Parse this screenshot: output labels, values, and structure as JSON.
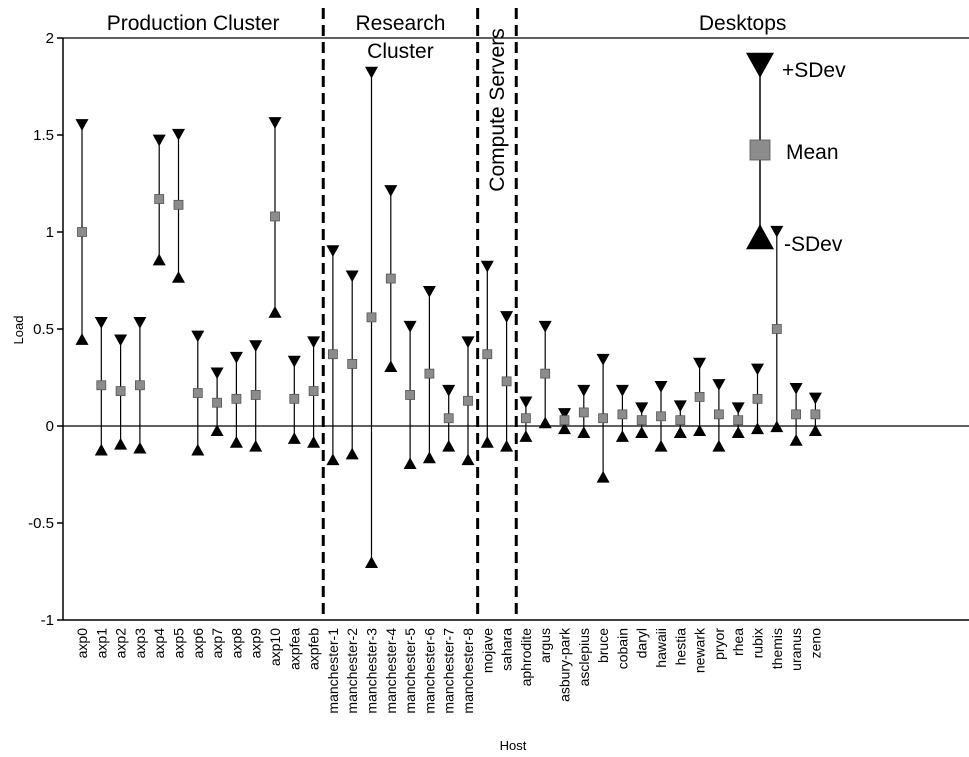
{
  "chart_data": {
    "type": "scatter",
    "subtype": "error-bar",
    "xlabel": "Host",
    "ylabel": "Load",
    "ylim": [
      -1,
      2
    ],
    "yticks": [
      -1,
      -0.5,
      0,
      0.5,
      1,
      1.5,
      2
    ],
    "ytick_labels": [
      "-1",
      "-0.5",
      "0",
      "0.5",
      "1",
      "1.5",
      "2"
    ],
    "grid": false,
    "legend_position": "top-right",
    "legend": {
      "plus_sdev": "+SDev",
      "mean": "Mean",
      "minus_sdev": "-SDev"
    },
    "groups": [
      {
        "label_lines": [
          "Production Cluster"
        ],
        "vertical": false
      },
      {
        "label_lines": [
          "Research",
          "Cluster"
        ],
        "vertical": false
      },
      {
        "label_lines": [
          "Compute Servers"
        ],
        "vertical": true
      },
      {
        "label_lines": [
          "Desktops"
        ],
        "vertical": false
      }
    ],
    "hosts": [
      {
        "name": "axp0",
        "group": 0,
        "mean": 1.0,
        "plus_sdev": 1.55,
        "minus_sdev": 0.45
      },
      {
        "name": "axp1",
        "group": 0,
        "mean": 0.21,
        "plus_sdev": 0.53,
        "minus_sdev": -0.12
      },
      {
        "name": "axp2",
        "group": 0,
        "mean": 0.18,
        "plus_sdev": 0.44,
        "minus_sdev": -0.09
      },
      {
        "name": "axp3",
        "group": 0,
        "mean": 0.21,
        "plus_sdev": 0.53,
        "minus_sdev": -0.11
      },
      {
        "name": "axp4",
        "group": 0,
        "mean": 1.17,
        "plus_sdev": 1.47,
        "minus_sdev": 0.86
      },
      {
        "name": "axp5",
        "group": 0,
        "mean": 1.14,
        "plus_sdev": 1.5,
        "minus_sdev": 0.77
      },
      {
        "name": "axp6",
        "group": 0,
        "mean": 0.17,
        "plus_sdev": 0.46,
        "minus_sdev": -0.12
      },
      {
        "name": "axp7",
        "group": 0,
        "mean": 0.12,
        "plus_sdev": 0.27,
        "minus_sdev": -0.02
      },
      {
        "name": "axp8",
        "group": 0,
        "mean": 0.14,
        "plus_sdev": 0.35,
        "minus_sdev": -0.08
      },
      {
        "name": "axp9",
        "group": 0,
        "mean": 0.16,
        "plus_sdev": 0.41,
        "minus_sdev": -0.1
      },
      {
        "name": "axp10",
        "group": 0,
        "mean": 1.08,
        "plus_sdev": 1.56,
        "minus_sdev": 0.59
      },
      {
        "name": "axpfea",
        "group": 0,
        "mean": 0.14,
        "plus_sdev": 0.33,
        "minus_sdev": -0.06
      },
      {
        "name": "axpfeb",
        "group": 0,
        "mean": 0.18,
        "plus_sdev": 0.43,
        "minus_sdev": -0.08
      },
      {
        "name": "manchester-1",
        "group": 1,
        "mean": 0.37,
        "plus_sdev": 0.9,
        "minus_sdev": -0.17
      },
      {
        "name": "manchester-2",
        "group": 1,
        "mean": 0.32,
        "plus_sdev": 0.77,
        "minus_sdev": -0.14
      },
      {
        "name": "manchester-3",
        "group": 1,
        "mean": 0.56,
        "plus_sdev": 1.82,
        "minus_sdev": -0.7
      },
      {
        "name": "manchester-4",
        "group": 1,
        "mean": 0.76,
        "plus_sdev": 1.21,
        "minus_sdev": 0.31
      },
      {
        "name": "manchester-5",
        "group": 1,
        "mean": 0.16,
        "plus_sdev": 0.51,
        "minus_sdev": -0.19
      },
      {
        "name": "manchester-6",
        "group": 1,
        "mean": 0.27,
        "plus_sdev": 0.69,
        "minus_sdev": -0.16
      },
      {
        "name": "manchester-7",
        "group": 1,
        "mean": 0.04,
        "plus_sdev": 0.18,
        "minus_sdev": -0.1
      },
      {
        "name": "manchester-8",
        "group": 1,
        "mean": 0.13,
        "plus_sdev": 0.43,
        "minus_sdev": -0.17
      },
      {
        "name": "mojave",
        "group": 2,
        "mean": 0.37,
        "plus_sdev": 0.82,
        "minus_sdev": -0.08
      },
      {
        "name": "sahara",
        "group": 2,
        "mean": 0.23,
        "plus_sdev": 0.56,
        "minus_sdev": -0.1
      },
      {
        "name": "aphrodite",
        "group": 3,
        "mean": 0.04,
        "plus_sdev": 0.12,
        "minus_sdev": -0.05
      },
      {
        "name": "argus",
        "group": 3,
        "mean": 0.27,
        "plus_sdev": 0.51,
        "minus_sdev": 0.02
      },
      {
        "name": "asbury-park",
        "group": 3,
        "mean": 0.03,
        "plus_sdev": 0.06,
        "minus_sdev": -0.01
      },
      {
        "name": "asclepius",
        "group": 3,
        "mean": 0.07,
        "plus_sdev": 0.18,
        "minus_sdev": -0.03
      },
      {
        "name": "bruce",
        "group": 3,
        "mean": 0.04,
        "plus_sdev": 0.34,
        "minus_sdev": -0.26
      },
      {
        "name": "cobain",
        "group": 3,
        "mean": 0.06,
        "plus_sdev": 0.18,
        "minus_sdev": -0.05
      },
      {
        "name": "daryl",
        "group": 3,
        "mean": 0.03,
        "plus_sdev": 0.09,
        "minus_sdev": -0.03
      },
      {
        "name": "hawaii",
        "group": 3,
        "mean": 0.05,
        "plus_sdev": 0.2,
        "minus_sdev": -0.1
      },
      {
        "name": "hestia",
        "group": 3,
        "mean": 0.03,
        "plus_sdev": 0.1,
        "minus_sdev": -0.03
      },
      {
        "name": "newark",
        "group": 3,
        "mean": 0.15,
        "plus_sdev": 0.32,
        "minus_sdev": -0.02
      },
      {
        "name": "pryor",
        "group": 3,
        "mean": 0.06,
        "plus_sdev": 0.21,
        "minus_sdev": -0.1
      },
      {
        "name": "rhea",
        "group": 3,
        "mean": 0.03,
        "plus_sdev": 0.09,
        "minus_sdev": -0.03
      },
      {
        "name": "rubix",
        "group": 3,
        "mean": 0.14,
        "plus_sdev": 0.29,
        "minus_sdev": -0.01
      },
      {
        "name": "themis",
        "group": 3,
        "mean": 0.5,
        "plus_sdev": 1.0,
        "minus_sdev": 0.0
      },
      {
        "name": "uranus",
        "group": 3,
        "mean": 0.06,
        "plus_sdev": 0.19,
        "minus_sdev": -0.07
      },
      {
        "name": "zeno",
        "group": 3,
        "mean": 0.06,
        "plus_sdev": 0.14,
        "minus_sdev": -0.02
      }
    ],
    "colors": {
      "marker": "#000000",
      "mean_marker": "#8c8c8c",
      "line": "#000000"
    }
  }
}
